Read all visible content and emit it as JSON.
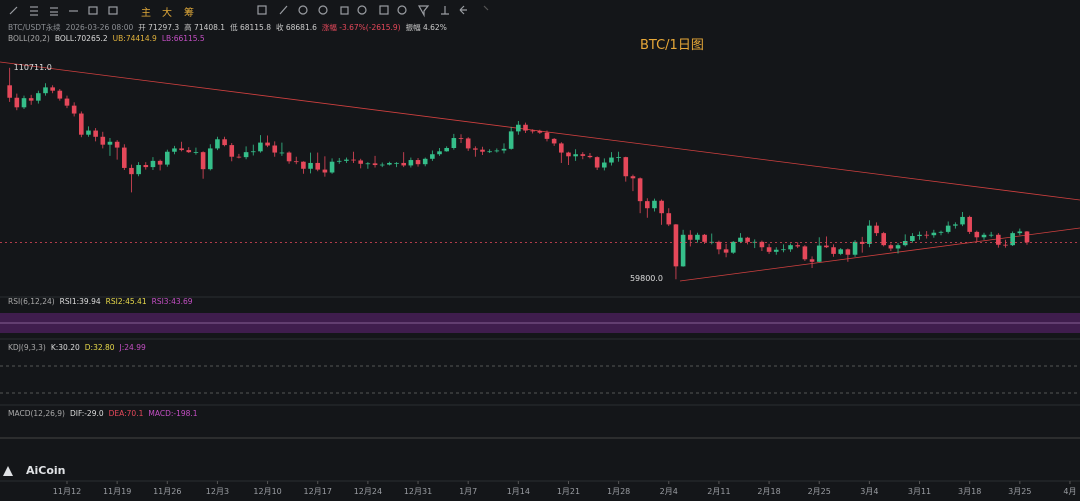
{
  "toolbar": {
    "buttons": [
      "主",
      "大",
      "筹"
    ]
  },
  "legend": {
    "symbol": "BTC/USDT永续",
    "datetime": "2026-03-26 08:00",
    "fields": [
      "开 71297.3",
      "高 71408.1",
      "低 68115.8",
      "收 68681.6",
      "涨幅 -3.67%(-2615.9)",
      "振幅 4.62%"
    ],
    "boll": [
      "BOLL(20,2)",
      "BOLL:70265.2",
      "UB:74414.9",
      "LB:66115.5"
    ]
  },
  "panels": {
    "rsi": [
      "RSI(6,12,24)",
      "RSI1:39.94",
      "RSI2:45.41",
      "RSI3:43.69"
    ],
    "kdj": [
      "KDJ(9,3,3)",
      "K:30.20",
      "D:32.80",
      "J:24.99"
    ],
    "macd": [
      "MACD(12,26,9)",
      "DIF:-29.0",
      "DEA:70.1",
      "MACD:-198.1"
    ]
  },
  "logo": "AiCoin",
  "chart_data": {
    "type": "candlestick",
    "title": "BTC/1日图",
    "up_color": "#35bf8a",
    "down_color": "#e5485a",
    "annotations": [
      "110711.0",
      "59800.0"
    ],
    "xlim": [
      -1.35,
      149.4
    ],
    "ylim": [
      56000,
      115000
    ],
    "xticks": [
      {
        "value": 8,
        "label": "11月12"
      },
      {
        "value": 15,
        "label": "11月19"
      },
      {
        "value": 22,
        "label": "11月26"
      },
      {
        "value": 29,
        "label": "12月3"
      },
      {
        "value": 36,
        "label": "12月10"
      },
      {
        "value": 43,
        "label": "12月17"
      },
      {
        "value": 50,
        "label": "12月24"
      },
      {
        "value": 57,
        "label": "12月31"
      },
      {
        "value": 64,
        "label": "1月7"
      },
      {
        "value": 71,
        "label": "1月14"
      },
      {
        "value": 78,
        "label": "1月21"
      },
      {
        "value": 85,
        "label": "1月28"
      },
      {
        "value": 92,
        "label": "2月4"
      },
      {
        "value": 99,
        "label": "2月11"
      },
      {
        "value": 106,
        "label": "2月18"
      },
      {
        "value": 113,
        "label": "2月25"
      },
      {
        "value": 120,
        "label": "3月4"
      },
      {
        "value": 127,
        "label": "3月11"
      },
      {
        "value": 134,
        "label": "3月18"
      },
      {
        "value": 141,
        "label": "3月25"
      },
      {
        "value": 148,
        "label": "4月"
      }
    ],
    "candles": [
      [
        106500,
        110711,
        102500,
        103500
      ],
      [
        103500,
        104500,
        100500,
        101200
      ],
      [
        101200,
        104000,
        100800,
        103400
      ],
      [
        103400,
        104200,
        101800,
        102800
      ],
      [
        102800,
        105200,
        102100,
        104600
      ],
      [
        104600,
        107000,
        104000,
        106000
      ],
      [
        106000,
        106500,
        104600,
        105200
      ],
      [
        105200,
        105600,
        102800,
        103300
      ],
      [
        103300,
        104000,
        101000,
        101600
      ],
      [
        101600,
        102400,
        99000,
        99700
      ],
      [
        99700,
        100200,
        94000,
        94600
      ],
      [
        94600,
        96600,
        94100,
        95600
      ],
      [
        95600,
        96200,
        93000,
        94100
      ],
      [
        94100,
        95300,
        91300,
        92200
      ],
      [
        92200,
        93800,
        89500,
        92900
      ],
      [
        92900,
        93300,
        88600,
        91500
      ],
      [
        91500,
        92300,
        86100,
        86600
      ],
      [
        86600,
        87400,
        80700,
        85100
      ],
      [
        85100,
        88000,
        84600,
        87300
      ],
      [
        87300,
        88000,
        86200,
        86800
      ],
      [
        86800,
        89200,
        86100,
        88300
      ],
      [
        88300,
        88600,
        86000,
        87400
      ],
      [
        87400,
        91000,
        86900,
        90500
      ],
      [
        90500,
        91900,
        89900,
        91300
      ],
      [
        91300,
        92900,
        90600,
        90900
      ],
      [
        90900,
        91600,
        90200,
        90400
      ],
      [
        90400,
        91500,
        89800,
        90400
      ],
      [
        90400,
        90600,
        84000,
        86300
      ],
      [
        86300,
        92300,
        86000,
        91300
      ],
      [
        91300,
        94100,
        90900,
        93500
      ],
      [
        93500,
        94100,
        91800,
        92100
      ],
      [
        92100,
        92600,
        88200,
        89300
      ],
      [
        89300,
        90000,
        88900,
        89200
      ],
      [
        89200,
        91800,
        88700,
        90400
      ],
      [
        90400,
        92200,
        89600,
        90600
      ],
      [
        90600,
        94500,
        90300,
        92700
      ],
      [
        92700,
        94400,
        91600,
        92000
      ],
      [
        92000,
        93000,
        89300,
        90300
      ],
      [
        90300,
        92700,
        89500,
        90300
      ],
      [
        90300,
        90600,
        87600,
        88200
      ],
      [
        88200,
        89300,
        87500,
        88100
      ],
      [
        88100,
        88200,
        85200,
        86400
      ],
      [
        86400,
        90300,
        85300,
        87800
      ],
      [
        87800,
        90300,
        85800,
        86200
      ],
      [
        86200,
        89400,
        84500,
        85500
      ],
      [
        85500,
        88900,
        85200,
        88100
      ],
      [
        88100,
        89000,
        87600,
        88300
      ],
      [
        88300,
        89100,
        87800,
        88600
      ],
      [
        88600,
        90500,
        87800,
        88400
      ],
      [
        88400,
        88800,
        86500,
        87600
      ],
      [
        87600,
        88000,
        86400,
        87700
      ],
      [
        87700,
        89500,
        86700,
        87300
      ],
      [
        87300,
        87900,
        86800,
        87400
      ],
      [
        87400,
        88100,
        87200,
        87800
      ],
      [
        87800,
        88000,
        86800,
        87800
      ],
      [
        87800,
        90400,
        86800,
        87200
      ],
      [
        87200,
        89100,
        86700,
        88500
      ],
      [
        88500,
        89000,
        86900,
        87500
      ],
      [
        87500,
        89100,
        87000,
        88800
      ],
      [
        88800,
        90800,
        88300,
        89900
      ],
      [
        89900,
        91400,
        89500,
        90600
      ],
      [
        90600,
        91800,
        90500,
        91400
      ],
      [
        91400,
        94800,
        91000,
        93800
      ],
      [
        93800,
        94700,
        92600,
        93700
      ],
      [
        93700,
        94000,
        90700,
        91300
      ],
      [
        91300,
        91800,
        89300,
        91000
      ],
      [
        91000,
        91700,
        89700,
        90500
      ],
      [
        90500,
        91100,
        90200,
        90600
      ],
      [
        90600,
        91300,
        90300,
        90800
      ],
      [
        90800,
        92500,
        90100,
        91200
      ],
      [
        91200,
        96500,
        91000,
        95400
      ],
      [
        95400,
        97900,
        94600,
        97000
      ],
      [
        97000,
        97500,
        95000,
        95600
      ],
      [
        95600,
        95900,
        94900,
        95500
      ],
      [
        95500,
        95800,
        94800,
        95100
      ],
      [
        95100,
        95600,
        93000,
        93600
      ],
      [
        93600,
        93800,
        91900,
        92500
      ],
      [
        92500,
        92800,
        87800,
        90300
      ],
      [
        90300,
        90500,
        87300,
        89400
      ],
      [
        89400,
        91100,
        88300,
        89900
      ],
      [
        89900,
        90400,
        88700,
        89500
      ],
      [
        89500,
        90200,
        88900,
        89200
      ],
      [
        89200,
        89400,
        86100,
        86700
      ],
      [
        86700,
        88900,
        86000,
        87900
      ],
      [
        87900,
        90400,
        87200,
        89100
      ],
      [
        89100,
        90500,
        88100,
        89200
      ],
      [
        89200,
        89300,
        83300,
        84600
      ],
      [
        84600,
        85000,
        81000,
        84100
      ],
      [
        84100,
        84300,
        75700,
        78600
      ],
      [
        78600,
        79300,
        74600,
        76900
      ],
      [
        76900,
        79200,
        76100,
        78700
      ],
      [
        78700,
        79000,
        72900,
        75700
      ],
      [
        75700,
        76900,
        72600,
        73000
      ],
      [
        73000,
        73100,
        59800,
        62900
      ],
      [
        62900,
        71700,
        62800,
        70500
      ],
      [
        70500,
        71600,
        67700,
        69300
      ],
      [
        69300,
        71000,
        68600,
        70500
      ],
      [
        70500,
        70700,
        68300,
        68800
      ],
      [
        68800,
        70800,
        68200,
        68800
      ],
      [
        68800,
        69100,
        65800,
        67000
      ],
      [
        67000,
        68300,
        65100,
        66200
      ],
      [
        66200,
        69000,
        65900,
        68800
      ],
      [
        68800,
        70900,
        68500,
        69800
      ],
      [
        69800,
        70000,
        68200,
        68800
      ],
      [
        68800,
        69400,
        67300,
        68800
      ],
      [
        68800,
        69100,
        66600,
        67500
      ],
      [
        67500,
        68300,
        65900,
        66400
      ],
      [
        66400,
        67500,
        65700,
        66900
      ],
      [
        66900,
        68200,
        66300,
        67000
      ],
      [
        67000,
        68400,
        66400,
        68000
      ],
      [
        68000,
        68700,
        67300,
        67700
      ],
      [
        67700,
        68000,
        64200,
        64600
      ],
      [
        64600,
        65300,
        62500,
        64000
      ],
      [
        64000,
        69900,
        63900,
        67900
      ],
      [
        67900,
        70100,
        67300,
        67500
      ],
      [
        67500,
        68200,
        65200,
        65900
      ],
      [
        65900,
        67300,
        65600,
        67000
      ],
      [
        67000,
        67200,
        64000,
        65700
      ],
      [
        65700,
        69200,
        65200,
        68800
      ],
      [
        68800,
        70000,
        66200,
        68300
      ],
      [
        68300,
        74000,
        67500,
        72700
      ],
      [
        72700,
        73500,
        70200,
        70900
      ],
      [
        70900,
        71200,
        67700,
        68000
      ],
      [
        68000,
        68400,
        66600,
        67200
      ],
      [
        67200,
        68500,
        66000,
        68000
      ],
      [
        68000,
        70600,
        67700,
        69000
      ],
      [
        69000,
        70900,
        68600,
        70200
      ],
      [
        70200,
        71300,
        69300,
        70500
      ],
      [
        70500,
        71400,
        69600,
        70400
      ],
      [
        70400,
        71700,
        69800,
        71000
      ],
      [
        71000,
        71500,
        70400,
        71200
      ],
      [
        71200,
        73700,
        70800,
        72700
      ],
      [
        72700,
        73500,
        72000,
        73000
      ],
      [
        73000,
        76000,
        72600,
        74800
      ],
      [
        74800,
        75100,
        70700,
        71200
      ],
      [
        71200,
        71500,
        68900,
        69900
      ],
      [
        69900,
        71000,
        69300,
        70500
      ],
      [
        70500,
        71200,
        69900,
        70500
      ],
      [
        70500,
        70900,
        67400,
        68100
      ],
      [
        68100,
        69300,
        67400,
        68000
      ],
      [
        68000,
        71300,
        67800,
        70900
      ],
      [
        70900,
        72000,
        70400,
        71300
      ],
      [
        71297.3,
        71408.1,
        68115.8,
        68681.6
      ]
    ]
  }
}
